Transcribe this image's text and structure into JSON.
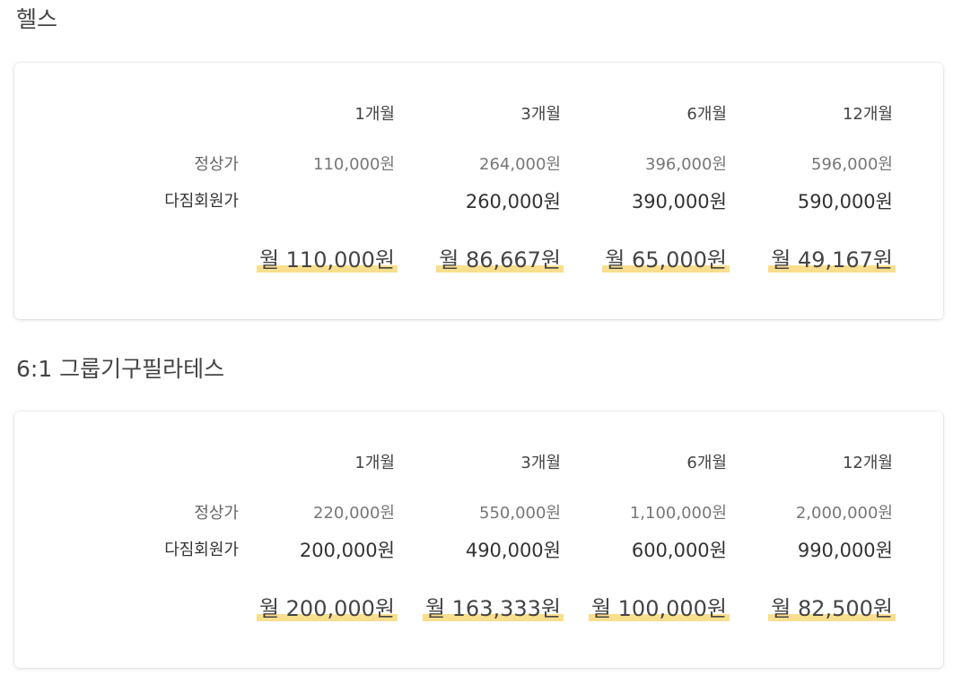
{
  "sections": [
    {
      "title": "헬스",
      "columns": [
        "1개월",
        "3개월",
        "6개월",
        "12개월"
      ],
      "regular_label": "정상가",
      "member_label": "다짐회원가",
      "regular_prices": [
        "110,000원",
        "264,000원",
        "396,000원",
        "596,000원"
      ],
      "member_prices": [
        "",
        "260,000원",
        "390,000원",
        "590,000원"
      ],
      "monthly_prices": [
        "월 110,000원",
        "월 86,667원",
        "월 65,000원",
        "월 49,167원"
      ]
    },
    {
      "title": "6:1 그룹기구필라테스",
      "columns": [
        "1개월",
        "3개월",
        "6개월",
        "12개월"
      ],
      "regular_label": "정상가",
      "member_label": "다짐회원가",
      "regular_prices": [
        "220,000원",
        "550,000원",
        "1,100,000원",
        "2,000,000원"
      ],
      "member_prices": [
        "200,000원",
        "490,000원",
        "600,000원",
        "990,000원"
      ],
      "monthly_prices": [
        "월 200,000원",
        "월 163,333원",
        "월 100,000원",
        "월 82,500원"
      ]
    }
  ],
  "colors": {
    "highlight": "#f9de8d",
    "card_background": "#ffffff",
    "title_text": "#444444",
    "regular_price_text": "#777777"
  }
}
